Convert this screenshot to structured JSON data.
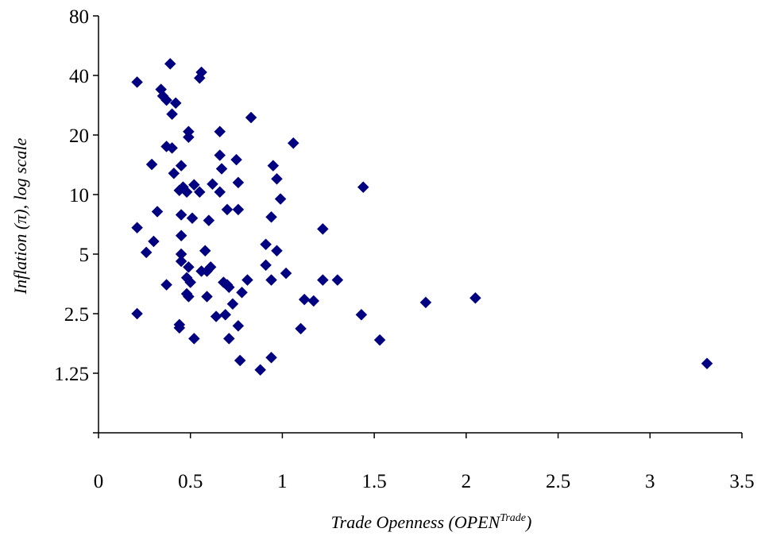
{
  "chart_data": {
    "type": "scatter",
    "title": "",
    "xlabel_main": "Trade Openness (OPEN",
    "xlabel_sup": "Trade",
    "xlabel_end": ")",
    "ylabel": "Inflation (π), log scale",
    "xlim": [
      0,
      3.5
    ],
    "ylim": [
      0.625,
      80
    ],
    "yscale": "log2",
    "grid": false,
    "legend": "none",
    "marker": "diamond",
    "marker_color": "#000080",
    "x_ticks": [
      "0",
      "0.5",
      "1",
      "1.5",
      "2",
      "2.5",
      "3",
      "3.5"
    ],
    "y_ticks": [
      "1.25",
      "2.5",
      "5",
      "10",
      "20",
      "40",
      "80"
    ],
    "points": [
      {
        "x": 0.21,
        "y": 37.0
      },
      {
        "x": 0.39,
        "y": 45.8
      },
      {
        "x": 0.56,
        "y": 41.5
      },
      {
        "x": 0.55,
        "y": 38.8
      },
      {
        "x": 0.34,
        "y": 34.0
      },
      {
        "x": 0.35,
        "y": 31.5
      },
      {
        "x": 0.37,
        "y": 30.0
      },
      {
        "x": 0.42,
        "y": 29.0
      },
      {
        "x": 0.4,
        "y": 25.5
      },
      {
        "x": 0.83,
        "y": 24.5
      },
      {
        "x": 0.49,
        "y": 20.8
      },
      {
        "x": 0.66,
        "y": 20.8
      },
      {
        "x": 0.49,
        "y": 19.5
      },
      {
        "x": 1.06,
        "y": 18.2
      },
      {
        "x": 0.37,
        "y": 17.5
      },
      {
        "x": 0.4,
        "y": 17.2
      },
      {
        "x": 0.66,
        "y": 15.8
      },
      {
        "x": 0.75,
        "y": 15.0
      },
      {
        "x": 0.29,
        "y": 14.2
      },
      {
        "x": 0.45,
        "y": 14.0
      },
      {
        "x": 0.95,
        "y": 14.0
      },
      {
        "x": 0.67,
        "y": 13.5
      },
      {
        "x": 0.41,
        "y": 12.8
      },
      {
        "x": 0.97,
        "y": 12.0
      },
      {
        "x": 0.76,
        "y": 11.5
      },
      {
        "x": 0.62,
        "y": 11.3
      },
      {
        "x": 0.52,
        "y": 11.2
      },
      {
        "x": 0.46,
        "y": 10.9
      },
      {
        "x": 1.44,
        "y": 10.9
      },
      {
        "x": 0.44,
        "y": 10.5
      },
      {
        "x": 0.48,
        "y": 10.3
      },
      {
        "x": 0.55,
        "y": 10.3
      },
      {
        "x": 0.66,
        "y": 10.3
      },
      {
        "x": 0.99,
        "y": 9.5
      },
      {
        "x": 0.7,
        "y": 8.4
      },
      {
        "x": 0.76,
        "y": 8.4
      },
      {
        "x": 0.32,
        "y": 8.2
      },
      {
        "x": 0.45,
        "y": 7.9
      },
      {
        "x": 0.51,
        "y": 7.6
      },
      {
        "x": 0.6,
        "y": 7.4
      },
      {
        "x": 0.94,
        "y": 7.7
      },
      {
        "x": 0.21,
        "y": 6.8
      },
      {
        "x": 1.22,
        "y": 6.7
      },
      {
        "x": 0.45,
        "y": 6.2
      },
      {
        "x": 0.3,
        "y": 5.8
      },
      {
        "x": 0.91,
        "y": 5.6
      },
      {
        "x": 0.26,
        "y": 5.1
      },
      {
        "x": 0.58,
        "y": 5.2
      },
      {
        "x": 0.97,
        "y": 5.2
      },
      {
        "x": 0.45,
        "y": 5.0
      },
      {
        "x": 0.45,
        "y": 4.6
      },
      {
        "x": 0.91,
        "y": 4.4
      },
      {
        "x": 0.49,
        "y": 4.3
      },
      {
        "x": 0.61,
        "y": 4.3
      },
      {
        "x": 0.56,
        "y": 4.1
      },
      {
        "x": 0.59,
        "y": 4.1
      },
      {
        "x": 1.02,
        "y": 4.0
      },
      {
        "x": 0.48,
        "y": 3.8
      },
      {
        "x": 0.5,
        "y": 3.6
      },
      {
        "x": 0.68,
        "y": 3.6
      },
      {
        "x": 0.7,
        "y": 3.5
      },
      {
        "x": 0.81,
        "y": 3.7
      },
      {
        "x": 0.94,
        "y": 3.7
      },
      {
        "x": 1.22,
        "y": 3.7
      },
      {
        "x": 1.3,
        "y": 3.7
      },
      {
        "x": 0.37,
        "y": 3.5
      },
      {
        "x": 0.71,
        "y": 3.4
      },
      {
        "x": 0.78,
        "y": 3.2
      },
      {
        "x": 0.48,
        "y": 3.15
      },
      {
        "x": 0.49,
        "y": 3.05
      },
      {
        "x": 0.59,
        "y": 3.05
      },
      {
        "x": 1.12,
        "y": 2.95
      },
      {
        "x": 1.17,
        "y": 2.9
      },
      {
        "x": 0.73,
        "y": 2.8
      },
      {
        "x": 1.78,
        "y": 2.85
      },
      {
        "x": 2.05,
        "y": 3.0
      },
      {
        "x": 0.21,
        "y": 2.5
      },
      {
        "x": 0.64,
        "y": 2.42
      },
      {
        "x": 0.69,
        "y": 2.47
      },
      {
        "x": 1.43,
        "y": 2.47
      },
      {
        "x": 0.44,
        "y": 2.2
      },
      {
        "x": 0.44,
        "y": 2.12
      },
      {
        "x": 0.76,
        "y": 2.17
      },
      {
        "x": 1.1,
        "y": 2.1
      },
      {
        "x": 0.52,
        "y": 1.87
      },
      {
        "x": 0.71,
        "y": 1.87
      },
      {
        "x": 1.53,
        "y": 1.84
      },
      {
        "x": 0.77,
        "y": 1.45
      },
      {
        "x": 0.94,
        "y": 1.5
      },
      {
        "x": 0.88,
        "y": 1.3
      },
      {
        "x": 3.31,
        "y": 1.4
      }
    ]
  }
}
